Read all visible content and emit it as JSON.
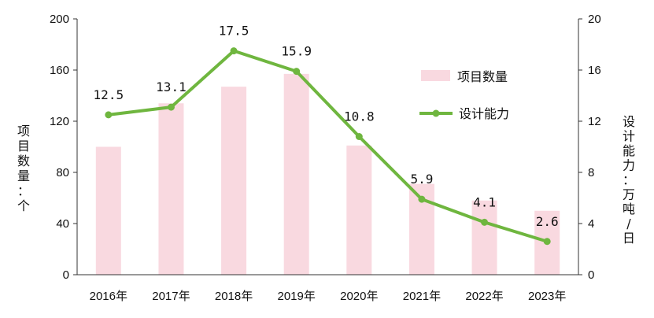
{
  "chart_data": {
    "type": "bar+line",
    "categories": [
      "2016年",
      "2017年",
      "2018年",
      "2019年",
      "2020年",
      "2021年",
      "2022年",
      "2023年"
    ],
    "series": [
      {
        "name": "项目数量",
        "type": "bar",
        "axis": "left",
        "color": "#f9d9e0",
        "values": [
          100,
          134,
          147,
          157,
          101,
          71,
          58,
          50
        ]
      },
      {
        "name": "设计能力",
        "type": "line",
        "axis": "right",
        "color": "#6fb63f",
        "values": [
          12.5,
          13.1,
          17.5,
          15.9,
          10.8,
          5.9,
          4.1,
          2.6
        ],
        "data_labels": [
          "12.5",
          "13.1",
          "17.5",
          "15.9",
          "10.8",
          "5.9",
          "4.1",
          "2.6"
        ]
      }
    ],
    "y_left": {
      "label_chars": [
        "项",
        "目",
        "数",
        "量",
        "：",
        "个"
      ],
      "ylim": [
        0,
        200
      ],
      "ticks": [
        "0",
        "40",
        "80",
        "120",
        "160",
        "200"
      ]
    },
    "y_right": {
      "label_chars": [
        "设",
        "计",
        "能",
        "力",
        "：",
        "万",
        "吨",
        "/",
        "日"
      ],
      "ylim": [
        0,
        20
      ],
      "ticks": [
        "0",
        "4",
        "8",
        "12",
        "16",
        "20"
      ]
    },
    "grid": false,
    "legend": {
      "position": "top-right",
      "entries": [
        "项目数量",
        "设计能力"
      ]
    }
  }
}
